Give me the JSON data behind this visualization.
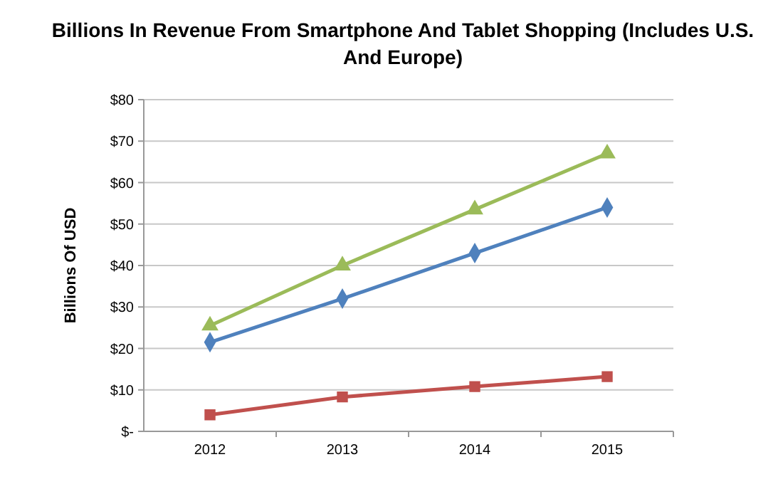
{
  "chart_data": {
    "type": "line",
    "title": "Billions In Revenue From Smartphone And Tablet Shopping (Includes U.S. And Europe)",
    "ylabel": "Billions Of USD",
    "categories": [
      "2012",
      "2013",
      "2014",
      "2015"
    ],
    "series": [
      {
        "color": "#4f81bd",
        "marker": "diamond",
        "values": [
          21.5,
          32,
          43,
          54
        ]
      },
      {
        "color": "#c0504d",
        "marker": "square",
        "values": [
          4,
          8.3,
          10.8,
          13.2
        ]
      },
      {
        "color": "#9bbb59",
        "marker": "triangle",
        "values": [
          25.5,
          40,
          53.5,
          67
        ]
      }
    ],
    "ylim": [
      0,
      80
    ],
    "yticks": [
      {
        "value": 0,
        "label": "$-"
      },
      {
        "value": 10,
        "label": "$10"
      },
      {
        "value": 20,
        "label": "$20"
      },
      {
        "value": 30,
        "label": "$30"
      },
      {
        "value": 40,
        "label": "$40"
      },
      {
        "value": 50,
        "label": "$50"
      },
      {
        "value": 60,
        "label": "$60"
      },
      {
        "value": 70,
        "label": "$70"
      },
      {
        "value": 80,
        "label": "$80"
      }
    ],
    "grid": "y",
    "line_style": "solid"
  }
}
